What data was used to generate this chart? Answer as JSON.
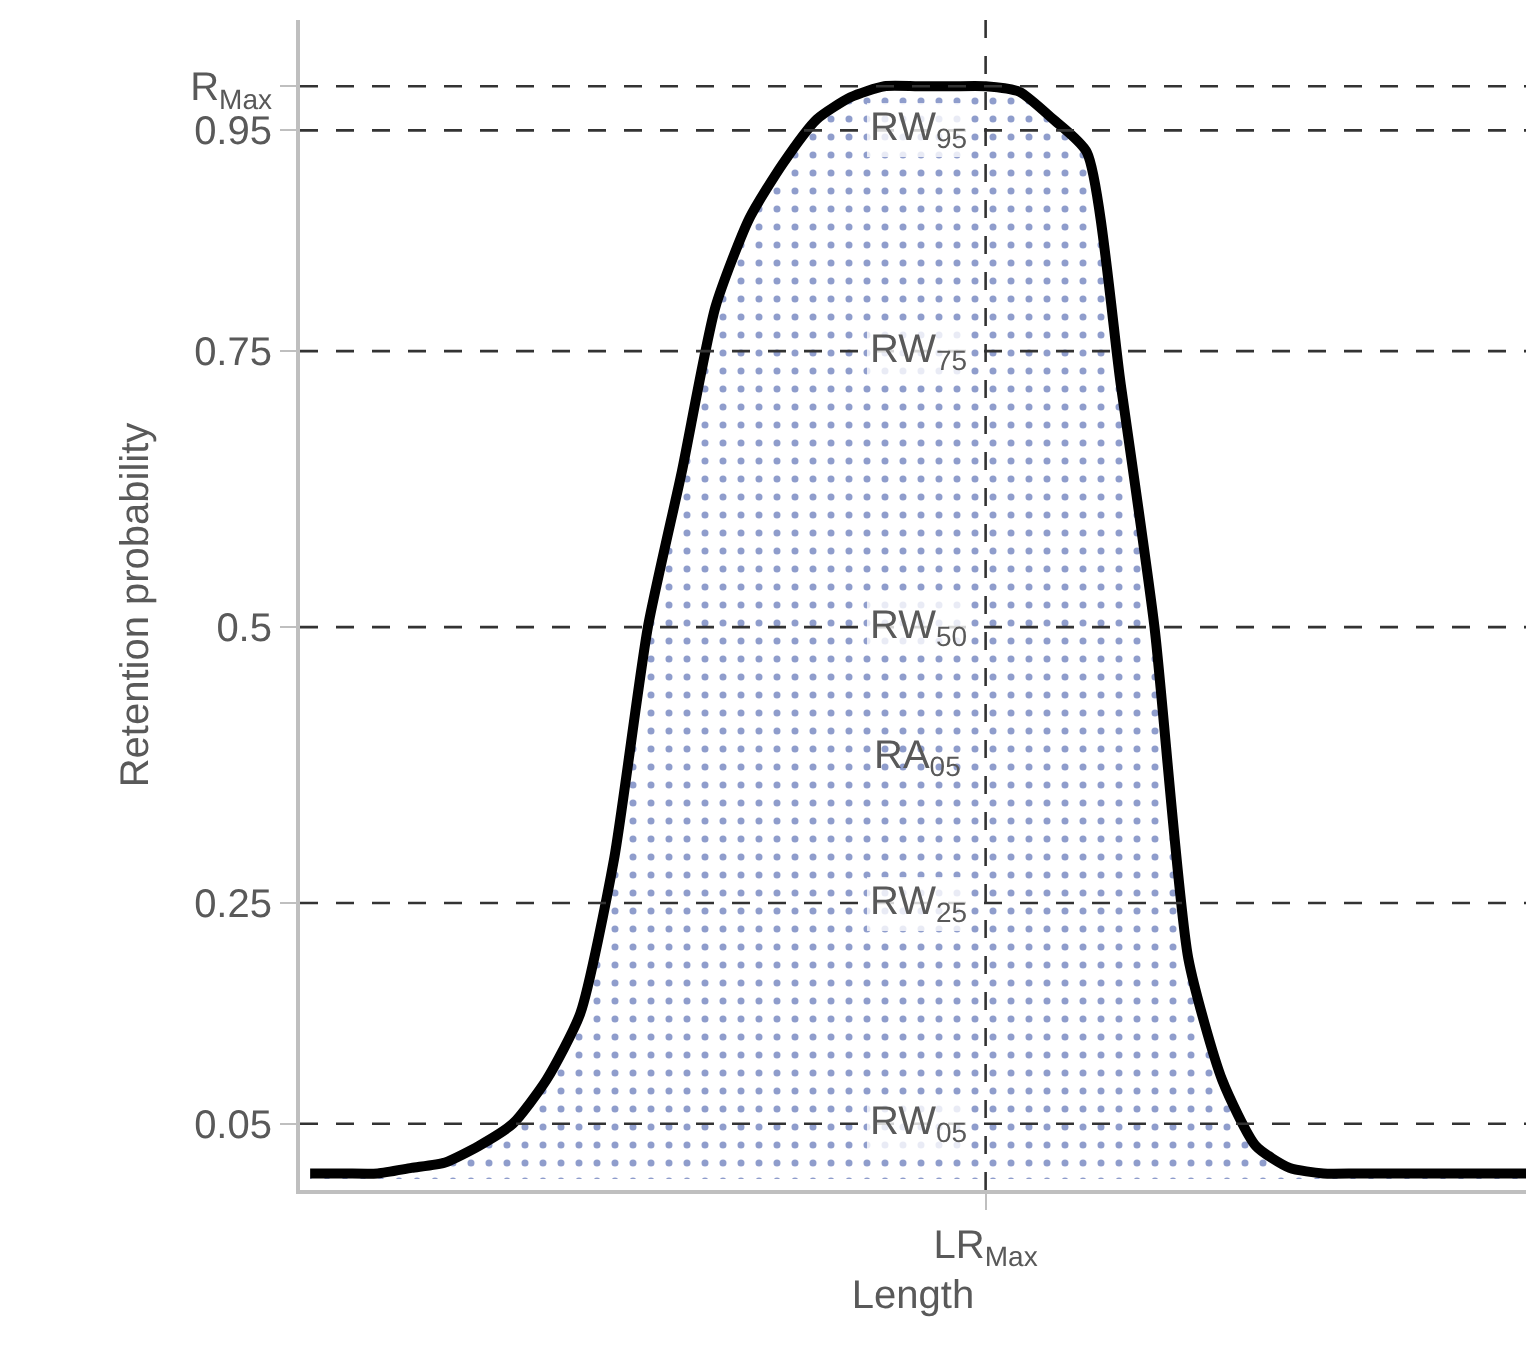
{
  "chart_data": {
    "type": "area",
    "xlabel": "Length",
    "ylabel": "Retention probability",
    "categories": [
      null,
      null,
      null,
      null,
      null,
      null,
      null,
      null,
      null,
      null,
      null,
      null,
      null,
      null,
      null,
      null,
      null,
      null,
      null,
      null,
      "LR$_{Max}$",
      null,
      null,
      null,
      null,
      null,
      null,
      null,
      null,
      null,
      null,
      null,
      null,
      null,
      null,
      null,
      null
    ],
    "series": [
      {
        "color": "#000000",
        "values": [
          0.005,
          0.005,
          0.005,
          0.01,
          0.015,
          0.03,
          0.05,
          0.09,
          0.15,
          0.29,
          0.5,
          0.64,
          0.79,
          0.87,
          0.92,
          0.96,
          0.98,
          0.99,
          0.99,
          0.99,
          0.99,
          0.985,
          0.96,
          0.93,
          0.72,
          0.5,
          0.2,
          0.09,
          0.03,
          0.01,
          0.005,
          0.005,
          0.005,
          0.005,
          0.005,
          0.005,
          0.005
        ]
      }
    ],
    "ylim": [
      -0.01,
      1.05
    ],
    "yticks": [
      0.05,
      0.25,
      0.5,
      0.75,
      0.95,
      {
        "value": 0.99,
        "label": "R$_{Max}$"
      }
    ],
    "ref_lines": [
      {
        "axis": "y",
        "value": 0.95,
        "label": "RW$_{95}$",
        "line_style": "dashed"
      },
      {
        "axis": "y",
        "value": 0.75,
        "label": "RW$_{75}$",
        "line_style": "dashed"
      },
      {
        "axis": "y",
        "value": 0.5,
        "label": "RW$_{50}$",
        "line_style": "dashed"
      },
      {
        "axis": "y",
        "value": 0.25,
        "label": "RW$_{25}$",
        "line_style": "dashed"
      },
      {
        "axis": "y",
        "value": 0.05,
        "label": "RW$_{05}$",
        "line_style": "dashed"
      },
      {
        "axis": "y",
        "value": 0.99,
        "line_style": "dashed"
      },
      {
        "axis": "x",
        "value": "LR$_{Max}$",
        "line_style": "dashed"
      }
    ],
    "annotations": [
      "RA$_{05}$"
    ],
    "legend": false,
    "marker": "none",
    "line_style": "solid"
  }
}
